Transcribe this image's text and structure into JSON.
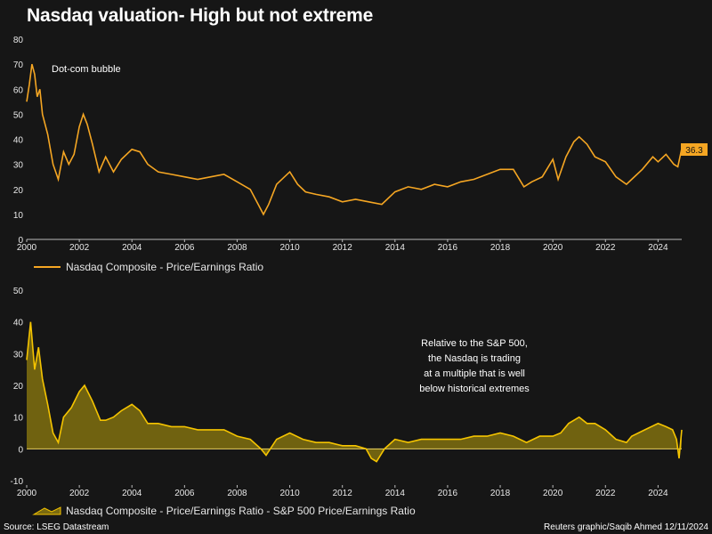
{
  "title": "Nasdaq valuation- High but not extreme",
  "source": "Source: LSEG Datastream",
  "credit": "Reuters graphic/Saqib Ahmed 12/11/2024",
  "colors": {
    "pe_line": "#f5a623",
    "rel_line": "#f5c400",
    "rel_fill": "#7a6a10",
    "background": "#161616",
    "label_box": "#f5a623"
  },
  "chart_data": [
    {
      "type": "line",
      "title": "Nasdaq Composite - Price/Earnings Ratio",
      "series_name": "Nasdaq Composite - Price/Earnings Ratio",
      "xlim": [
        2000,
        2024.9
      ],
      "ylim": [
        0,
        80
      ],
      "y_ticks": [
        "0",
        "10",
        "20",
        "30",
        "40",
        "50",
        "60",
        "70",
        "80"
      ],
      "x_ticks": [
        "2000",
        "2002",
        "2004",
        "2006",
        "2008",
        "2010",
        "2012",
        "2014",
        "2016",
        "2018",
        "2020",
        "2022",
        "2024"
      ],
      "annotation": "Dot-com bubble",
      "last_value_label": "36.3",
      "x": [
        2000.0,
        2000.1,
        2000.2,
        2000.3,
        2000.4,
        2000.5,
        2000.6,
        2000.8,
        2001.0,
        2001.2,
        2001.4,
        2001.6,
        2001.8,
        2002.0,
        2002.15,
        2002.3,
        2002.5,
        2002.75,
        2003.0,
        2003.3,
        2003.6,
        2004.0,
        2004.3,
        2004.6,
        2005.0,
        2005.5,
        2006.0,
        2006.5,
        2007.0,
        2007.5,
        2008.0,
        2008.5,
        2008.8,
        2009.0,
        2009.2,
        2009.5,
        2010.0,
        2010.3,
        2010.6,
        2011.0,
        2011.5,
        2012.0,
        2012.5,
        2013.0,
        2013.5,
        2014.0,
        2014.5,
        2015.0,
        2015.5,
        2016.0,
        2016.5,
        2017.0,
        2017.5,
        2018.0,
        2018.5,
        2018.9,
        2019.2,
        2019.6,
        2020.0,
        2020.2,
        2020.5,
        2020.8,
        2021.0,
        2021.3,
        2021.6,
        2022.0,
        2022.4,
        2022.8,
        2023.0,
        2023.4,
        2023.8,
        2024.0,
        2024.3,
        2024.6,
        2024.75,
        2024.9
      ],
      "values": [
        55,
        62,
        70,
        66,
        57,
        60,
        50,
        42,
        30,
        24,
        35,
        30,
        34,
        45,
        50,
        46,
        38,
        27,
        33,
        27,
        32,
        36,
        35,
        30,
        27,
        26,
        25,
        24,
        25,
        26,
        23,
        20,
        14,
        10,
        14,
        22,
        27,
        22,
        19,
        18,
        17,
        15,
        16,
        15,
        14,
        19,
        21,
        20,
        22,
        21,
        23,
        24,
        26,
        28,
        28,
        21,
        23,
        25,
        32,
        24,
        33,
        39,
        41,
        38,
        33,
        31,
        25,
        22,
        24,
        28,
        33,
        31,
        34,
        30,
        29,
        36.3
      ]
    },
    {
      "type": "area",
      "title": "Nasdaq Composite - Price/Earnings Ratio - S&P 500 Price/Earnings Ratio",
      "series_name": "Nasdaq Composite - Price/Earnings Ratio - S&P 500 Price/Earnings Ratio",
      "xlim": [
        2000,
        2024.9
      ],
      "ylim": [
        -10,
        50
      ],
      "y_ticks": [
        "-10",
        "0",
        "10",
        "20",
        "30",
        "40",
        "50"
      ],
      "x_ticks": [
        "2000",
        "2002",
        "2004",
        "2006",
        "2008",
        "2010",
        "2012",
        "2014",
        "2016",
        "2018",
        "2020",
        "2022",
        "2024"
      ],
      "annotation": [
        "Relative to the S&P 500,",
        "the Nasdaq is trading",
        "at a multiple that is well",
        "below historical extremes"
      ],
      "x": [
        2000.0,
        2000.15,
        2000.3,
        2000.45,
        2000.6,
        2000.8,
        2001.0,
        2001.2,
        2001.4,
        2001.7,
        2002.0,
        2002.2,
        2002.5,
        2002.8,
        2003.0,
        2003.3,
        2003.6,
        2004.0,
        2004.3,
        2004.6,
        2005.0,
        2005.5,
        2006.0,
        2006.5,
        2007.0,
        2007.5,
        2008.0,
        2008.5,
        2008.9,
        2009.1,
        2009.5,
        2010.0,
        2010.5,
        2011.0,
        2011.5,
        2012.0,
        2012.5,
        2012.9,
        2013.1,
        2013.3,
        2013.6,
        2014.0,
        2014.5,
        2015.0,
        2015.5,
        2016.0,
        2016.5,
        2017.0,
        2017.5,
        2018.0,
        2018.5,
        2019.0,
        2019.5,
        2020.0,
        2020.3,
        2020.6,
        2021.0,
        2021.3,
        2021.6,
        2022.0,
        2022.4,
        2022.8,
        2023.0,
        2023.5,
        2024.0,
        2024.3,
        2024.55,
        2024.7,
        2024.8,
        2024.9
      ],
      "values": [
        28,
        40,
        25,
        32,
        22,
        14,
        5,
        2,
        10,
        13,
        18,
        20,
        15,
        9,
        9,
        10,
        12,
        14,
        12,
        8,
        8,
        7,
        7,
        6,
        6,
        6,
        4,
        3,
        0,
        -2,
        3,
        5,
        3,
        2,
        2,
        1,
        1,
        0,
        -3,
        -4,
        0,
        3,
        2,
        3,
        3,
        3,
        3,
        4,
        4,
        5,
        4,
        2,
        4,
        4,
        5,
        8,
        10,
        8,
        8,
        6,
        3,
        2,
        4,
        6,
        8,
        7,
        6,
        3,
        -3,
        6
      ]
    }
  ]
}
